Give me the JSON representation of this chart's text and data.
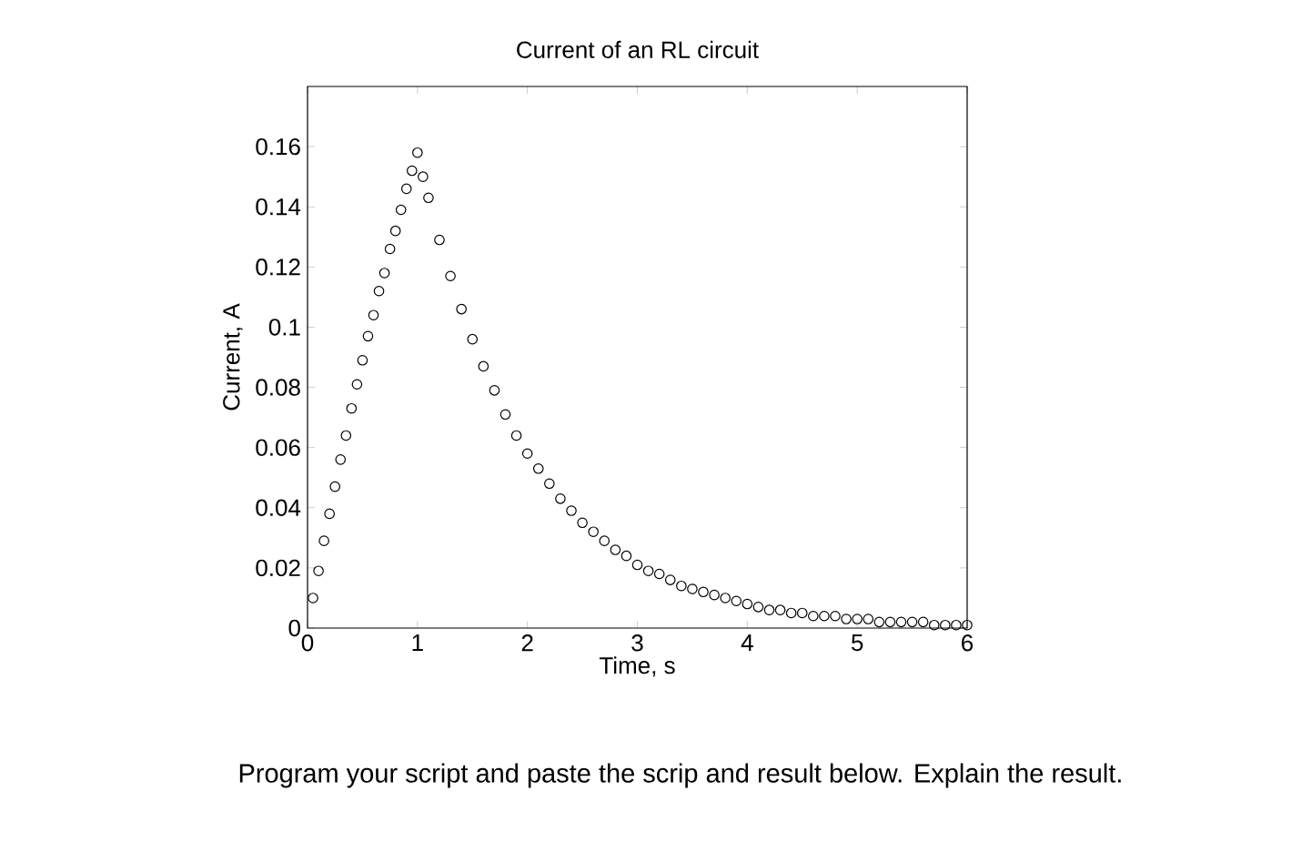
{
  "chart_data": {
    "type": "scatter",
    "title": "Current of an RL circuit",
    "xlabel": "Time, s",
    "ylabel": "Current, A",
    "annotations": [
      "Program your script and paste the scrip and result below. Explain the result."
    ],
    "xlim": [
      0,
      6
    ],
    "ylim": [
      0,
      0.18
    ],
    "xticks": [
      0,
      1,
      2,
      3,
      4,
      5,
      6
    ],
    "yticks": [
      0,
      0.02,
      0.04,
      0.06,
      0.08,
      0.1,
      0.12,
      0.14,
      0.16
    ],
    "marker": "circle",
    "series": [
      {
        "color": "#000000",
        "x": [
          0.05,
          0.1,
          0.15,
          0.2,
          0.25,
          0.3,
          0.35,
          0.4,
          0.45,
          0.5,
          0.55,
          0.6,
          0.65,
          0.7,
          0.75,
          0.8,
          0.85,
          0.9,
          0.95,
          1.0,
          1.05,
          1.1,
          1.2,
          1.3,
          1.4,
          1.5,
          1.6,
          1.7,
          1.8,
          1.9,
          2.0,
          2.1,
          2.2,
          2.3,
          2.4,
          2.5,
          2.6,
          2.7,
          2.8,
          2.9,
          3.0,
          3.1,
          3.2,
          3.3,
          3.4,
          3.5,
          3.6,
          3.7,
          3.8,
          3.9,
          4.0,
          4.1,
          4.2,
          4.3,
          4.4,
          4.5,
          4.6,
          4.7,
          4.8,
          4.9,
          5.0,
          5.1,
          5.2,
          5.3,
          5.4,
          5.5,
          5.6,
          5.7,
          5.8,
          5.9,
          6.0
        ],
        "values": [
          0.01,
          0.019,
          0.029,
          0.038,
          0.047,
          0.056,
          0.064,
          0.073,
          0.081,
          0.089,
          0.097,
          0.104,
          0.112,
          0.118,
          0.126,
          0.132,
          0.139,
          0.146,
          0.152,
          0.158,
          0.15,
          0.143,
          0.129,
          0.117,
          0.106,
          0.096,
          0.087,
          0.079,
          0.071,
          0.064,
          0.058,
          0.053,
          0.048,
          0.043,
          0.039,
          0.035,
          0.032,
          0.029,
          0.026,
          0.024,
          0.021,
          0.019,
          0.018,
          0.016,
          0.014,
          0.013,
          0.012,
          0.011,
          0.01,
          0.009,
          0.008,
          0.007,
          0.006,
          0.006,
          0.005,
          0.005,
          0.004,
          0.004,
          0.004,
          0.003,
          0.003,
          0.003,
          0.002,
          0.002,
          0.002,
          0.002,
          0.002,
          0.001,
          0.001,
          0.001,
          0.001
        ]
      }
    ]
  }
}
